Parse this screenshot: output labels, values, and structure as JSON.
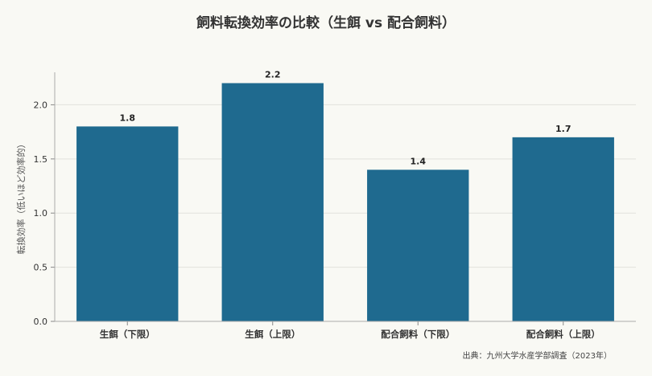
{
  "chart_data": {
    "type": "bar",
    "title": "飼料転換効率の比較（生餌 vs 配合飼料）",
    "ylabel": "転換効率（低いほど効率的）",
    "xlabel": "",
    "categories": [
      "生餌（下限）",
      "生餌（上限）",
      "配合飼料（下限）",
      "配合飼料（上限）"
    ],
    "values": [
      1.8,
      2.2,
      1.4,
      1.7
    ],
    "value_labels": [
      "1.8",
      "2.2",
      "1.4",
      "1.7"
    ],
    "ylim": [
      0,
      2.3
    ],
    "yticks": [
      0.0,
      0.5,
      1.0,
      1.5,
      2.0
    ],
    "ytick_labels": [
      "0.0",
      "0.5",
      "1.0",
      "1.5",
      "2.0"
    ],
    "grid": true,
    "bar_color": "#1f6a8f",
    "source": "出典：九州大学水産学部調査（2023年）"
  }
}
